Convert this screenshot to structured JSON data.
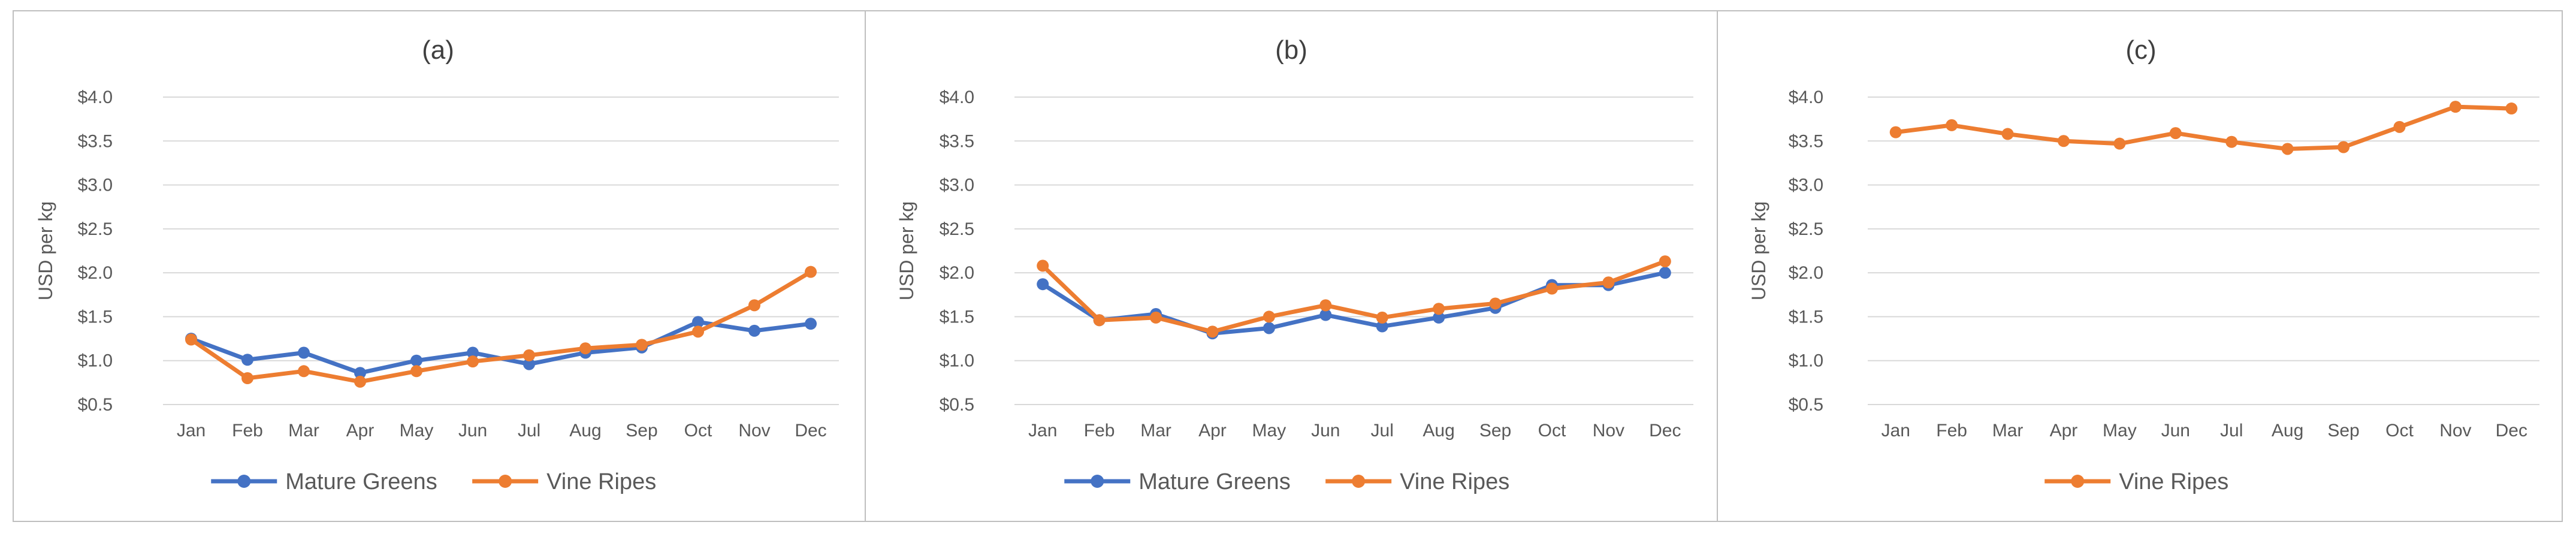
{
  "colors": {
    "mature_greens": "#4472C4",
    "vine_ripes": "#ED7D31",
    "grid": "#D9D9D9",
    "axis_text": "#595959",
    "title_text": "#404040",
    "frame": "#BFBFBF"
  },
  "chart_data": [
    {
      "type": "line",
      "title": "(a)",
      "xlabel": "",
      "ylabel": "USD per kg",
      "categories": [
        "Jan",
        "Feb",
        "Mar",
        "Apr",
        "May",
        "Jun",
        "Jul",
        "Aug",
        "Sep",
        "Oct",
        "Nov",
        "Dec"
      ],
      "yticks": [
        "$0.5",
        "$1.0",
        "$1.5",
        "$2.0",
        "$2.5",
        "$3.0",
        "$3.5",
        "$4.0"
      ],
      "ylim": [
        0.5,
        4.0
      ],
      "grid": true,
      "legend_position": "bottom",
      "series": [
        {
          "name": "Mature Greens",
          "color_key": "mature_greens",
          "values": [
            1.25,
            1.01,
            1.09,
            0.86,
            1.0,
            1.09,
            0.96,
            1.09,
            1.15,
            1.44,
            1.34,
            1.42
          ]
        },
        {
          "name": "Vine Ripes",
          "color_key": "vine_ripes",
          "values": [
            1.24,
            0.8,
            0.88,
            0.76,
            0.88,
            0.99,
            1.06,
            1.14,
            1.18,
            1.33,
            1.63,
            2.01
          ]
        }
      ]
    },
    {
      "type": "line",
      "title": "(b)",
      "xlabel": "",
      "ylabel": "USD per kg",
      "categories": [
        "Jan",
        "Feb",
        "Mar",
        "Apr",
        "May",
        "Jun",
        "Jul",
        "Aug",
        "Sep",
        "Oct",
        "Nov",
        "Dec"
      ],
      "yticks": [
        "$0.5",
        "$1.0",
        "$1.5",
        "$2.0",
        "$2.5",
        "$3.0",
        "$3.5",
        "$4.0"
      ],
      "ylim": [
        0.5,
        4.0
      ],
      "grid": true,
      "legend_position": "bottom",
      "series": [
        {
          "name": "Mature Greens",
          "color_key": "mature_greens",
          "values": [
            1.87,
            1.46,
            1.53,
            1.31,
            1.37,
            1.52,
            1.39,
            1.49,
            1.6,
            1.86,
            1.86,
            2.0
          ]
        },
        {
          "name": "Vine Ripes",
          "color_key": "vine_ripes",
          "values": [
            2.08,
            1.46,
            1.49,
            1.33,
            1.5,
            1.63,
            1.49,
            1.59,
            1.65,
            1.82,
            1.89,
            2.13
          ]
        }
      ]
    },
    {
      "type": "line",
      "title": "(c)",
      "xlabel": "",
      "ylabel": "USD per kg",
      "categories": [
        "Jan",
        "Feb",
        "Mar",
        "Apr",
        "May",
        "Jun",
        "Jul",
        "Aug",
        "Sep",
        "Oct",
        "Nov",
        "Dec"
      ],
      "yticks": [
        "$0.5",
        "$1.0",
        "$1.5",
        "$2.0",
        "$2.5",
        "$3.0",
        "$3.5",
        "$4.0"
      ],
      "ylim": [
        0.5,
        4.0
      ],
      "grid": true,
      "legend_position": "bottom",
      "series": [
        {
          "name": "Vine Ripes",
          "color_key": "vine_ripes",
          "values": [
            3.6,
            3.68,
            3.58,
            3.5,
            3.47,
            3.59,
            3.49,
            3.41,
            3.43,
            3.66,
            3.89,
            3.87
          ]
        }
      ]
    }
  ]
}
